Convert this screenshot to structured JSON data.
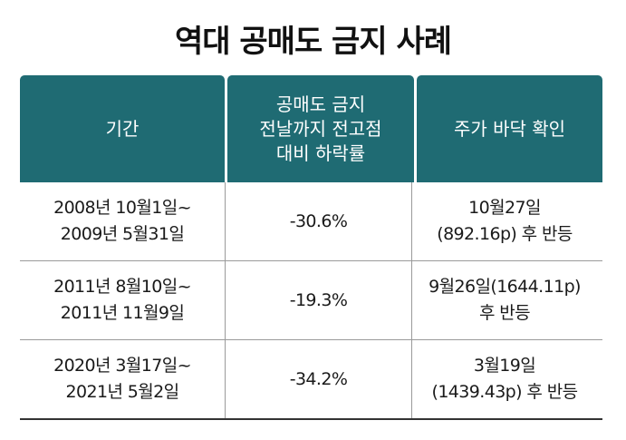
{
  "title": "역대 공매도 금지 사례",
  "headers": [
    {
      "lines": [
        "기간"
      ]
    },
    {
      "lines": [
        "공매도 금지",
        "전날까지 전고점",
        "대비 하락률"
      ]
    },
    {
      "lines": [
        "주가 바닥 확인"
      ]
    }
  ],
  "rows": [
    {
      "period": [
        "2008년 10월1일~",
        "2009년 5월31일"
      ],
      "decline": "-30.6%",
      "bottom": [
        "10월27일",
        "(892.16p) 후 반등"
      ]
    },
    {
      "period": [
        "2011년 8월10일~",
        "2011년 11월9일"
      ],
      "decline": "-19.3%",
      "bottom": [
        "9월26일(1644.11p)",
        "후 반등"
      ]
    },
    {
      "period": [
        "2020년 3월17일~",
        "2021년 5월2일"
      ],
      "decline": "-34.2%",
      "bottom": [
        "3월19일",
        "(1439.43p) 후 반등"
      ]
    }
  ]
}
